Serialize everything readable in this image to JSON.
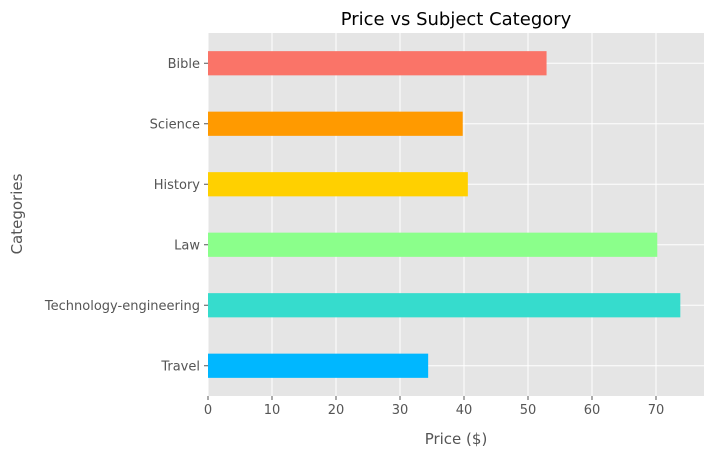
{
  "chart_data": {
    "type": "bar",
    "orientation": "horizontal",
    "title": "Price vs Subject Category",
    "xlabel": "Price ($)",
    "ylabel": "Categories",
    "categories": [
      "Travel",
      "Technology-engineering",
      "Law",
      "History",
      "Science",
      "Bible"
    ],
    "values": [
      34.4,
      73.8,
      70.2,
      40.6,
      39.8,
      52.9
    ],
    "colors": [
      "#00b7ff",
      "#36dccd",
      "#8bff8b",
      "#ffd000",
      "#ff9a00",
      "#fa7468"
    ],
    "xlim": [
      0,
      77.5
    ],
    "xticks": [
      0,
      10,
      20,
      30,
      40,
      50,
      60,
      70
    ],
    "grid": true,
    "style": {
      "plot_background": "#e5e5e5",
      "grid_color": "#ffffff"
    }
  }
}
